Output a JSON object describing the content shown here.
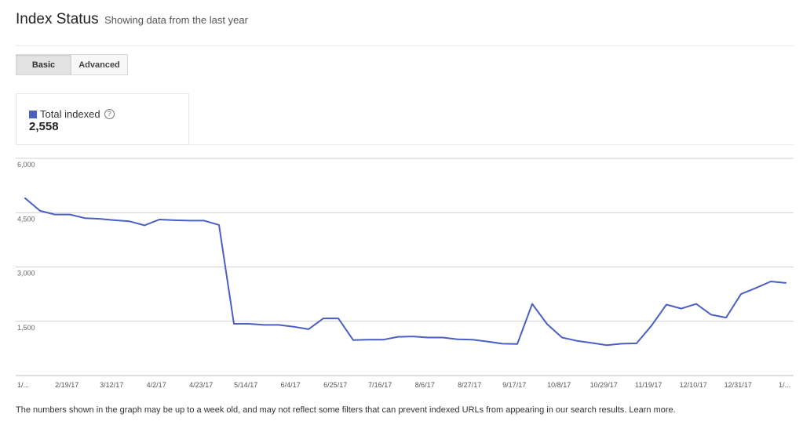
{
  "header": {
    "title": "Index Status",
    "subtitle": "Showing data from the last year"
  },
  "tabs": [
    {
      "label": "Basic",
      "active": true
    },
    {
      "label": "Advanced",
      "active": false
    }
  ],
  "legend": {
    "label": "Total indexed",
    "value": "2,558",
    "help_icon": "question-circle-icon",
    "color": "#4a5fc1"
  },
  "footnote": "The numbers shown in the graph may be up to a week old, and may not reflect some filters that can prevent indexed URLs from appearing in our search results. Learn more.",
  "chart_data": {
    "type": "line",
    "title": "",
    "xlabel": "",
    "ylabel": "",
    "ylim": [
      0,
      6000
    ],
    "y_ticks": [
      1500,
      3000,
      4500,
      6000
    ],
    "y_tick_labels": [
      "1,500",
      "3,000",
      "4,500",
      "6,000"
    ],
    "grid": true,
    "x_tick_labels": [
      "1/...",
      "2/19/17",
      "3/12/17",
      "4/2/17",
      "4/23/17",
      "5/14/17",
      "6/4/17",
      "6/25/17",
      "7/16/17",
      "8/6/17",
      "8/27/17",
      "9/17/17",
      "10/8/17",
      "10/29/17",
      "11/19/17",
      "12/10/17",
      "12/31/17",
      "1/..."
    ],
    "x_tick_index": [
      0,
      2.8,
      5.8,
      8.8,
      11.8,
      14.8,
      17.8,
      20.8,
      23.8,
      26.8,
      29.8,
      32.8,
      35.8,
      38.8,
      41.8,
      44.8,
      47.8,
      50.8
    ],
    "series": [
      {
        "name": "Total indexed",
        "color": "#4a5fc1",
        "values": [
          4900,
          4550,
          4450,
          4450,
          4350,
          4330,
          4290,
          4260,
          4150,
          4310,
          4290,
          4280,
          4280,
          4160,
          1430,
          1430,
          1400,
          1400,
          1350,
          1280,
          1580,
          1580,
          980,
          990,
          990,
          1070,
          1080,
          1050,
          1050,
          1000,
          990,
          940,
          880,
          870,
          1980,
          1420,
          1050,
          960,
          900,
          840,
          880,
          890,
          1380,
          1960,
          1850,
          1980,
          1680,
          1600,
          2250,
          2420,
          2600,
          2558
        ]
      }
    ]
  }
}
